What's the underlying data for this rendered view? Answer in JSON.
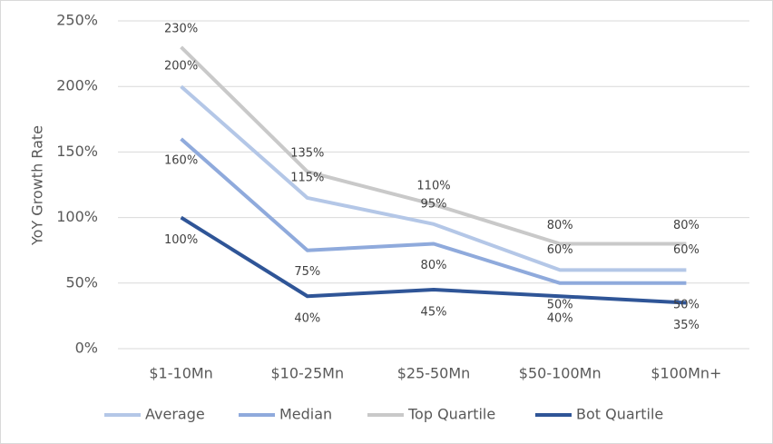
{
  "chart_data": {
    "type": "line",
    "y_label": "YoY Growth Rate",
    "categories": [
      "$1-10Mn",
      "$10-25Mn",
      "$25-50Mn",
      "$50-100Mn",
      "$100Mn+"
    ],
    "series": [
      {
        "name": "Average",
        "color": "#b4c7e7",
        "values": [
          200,
          115,
          95,
          60,
          60
        ],
        "value_labels": [
          "200%",
          "115%",
          "95%",
          "60%",
          "60%"
        ]
      },
      {
        "name": "Median",
        "color": "#8faadc",
        "values": [
          160,
          75,
          80,
          50,
          50
        ],
        "value_labels": [
          "160%",
          "75%",
          "80%",
          "50%",
          "50%"
        ]
      },
      {
        "name": "Top Quartile",
        "color": "#c9c9c9",
        "values": [
          230,
          135,
          110,
          80,
          80
        ],
        "value_labels": [
          "230%",
          "135%",
          "110%",
          "80%",
          "80%"
        ]
      },
      {
        "name": "Bot Quartile",
        "color": "#2f5597",
        "values": [
          100,
          40,
          45,
          40,
          35
        ],
        "value_labels": [
          "100%",
          "40%",
          "45%",
          "40%",
          "35%"
        ]
      }
    ],
    "ylim": [
      0,
      250
    ],
    "yticks": [
      {
        "value": 0,
        "label": "0%"
      },
      {
        "value": 50,
        "label": "50%"
      },
      {
        "value": 100,
        "label": "100%"
      },
      {
        "value": 150,
        "label": "150%"
      },
      {
        "value": 200,
        "label": "200%"
      },
      {
        "value": 250,
        "label": "250%"
      }
    ],
    "grid": true,
    "legend": "bottom"
  }
}
